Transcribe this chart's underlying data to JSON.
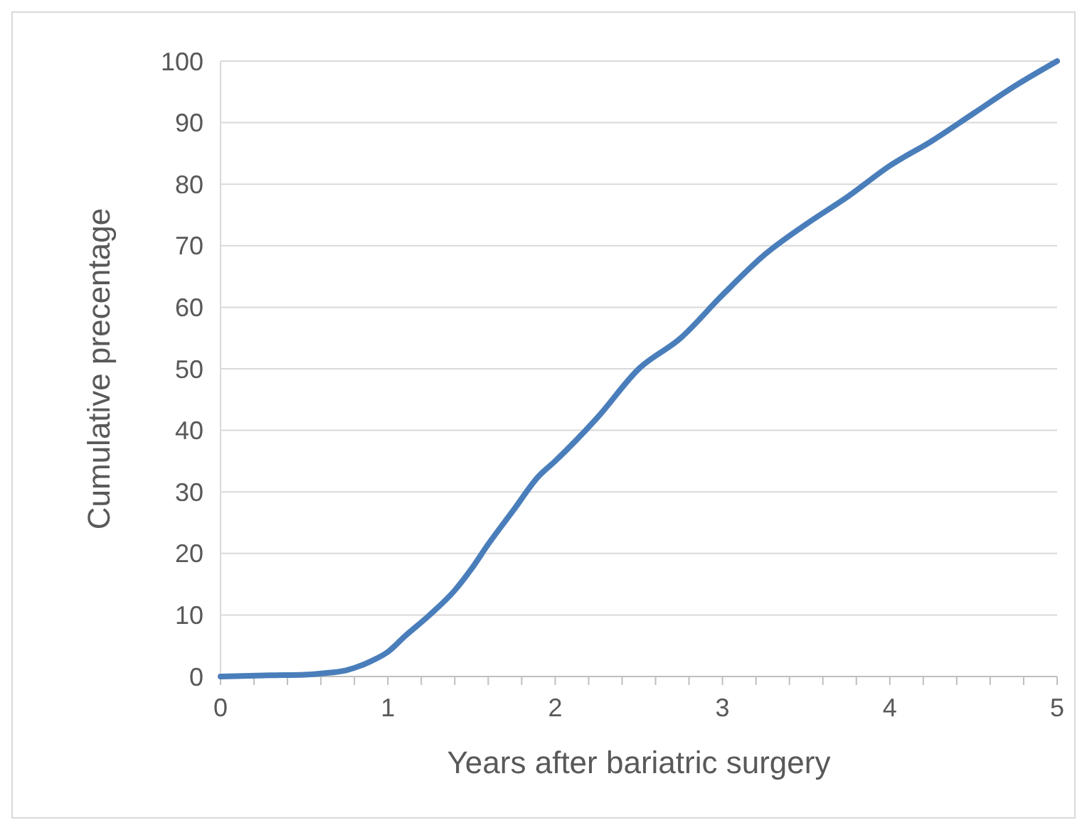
{
  "chart_data": {
    "type": "line",
    "xlabel": "Years after bariatric surgery",
    "ylabel": "Cumulative precentage",
    "x": [
      0,
      0.3,
      0.5,
      0.6,
      0.75,
      0.9,
      1.0,
      1.1,
      1.25,
      1.4,
      1.5,
      1.6,
      1.75,
      1.9,
      2.0,
      2.25,
      2.5,
      2.75,
      3.0,
      3.25,
      3.5,
      3.75,
      4.0,
      4.25,
      4.5,
      4.75,
      5.0
    ],
    "series": [
      {
        "color": "#4a7ebb",
        "values": [
          0,
          0.2,
          0.3,
          0.5,
          1,
          2.5,
          4,
          6.5,
          10,
          14,
          17.5,
          21.5,
          27,
          32.5,
          35,
          42,
          50,
          55,
          62,
          68.5,
          73.5,
          78,
          83,
          87,
          91.5,
          96,
          100
        ]
      }
    ],
    "xlim": [
      0,
      5
    ],
    "xticks": [
      0,
      {
        "value": 0.2,
        "label": null
      },
      {
        "value": 0.4,
        "label": null
      },
      {
        "value": 0.6,
        "label": null
      },
      {
        "value": 0.8,
        "label": null
      },
      1,
      {
        "value": 1.2,
        "label": null
      },
      {
        "value": 1.4,
        "label": null
      },
      {
        "value": 1.6,
        "label": null
      },
      {
        "value": 1.8,
        "label": null
      },
      2,
      {
        "value": 2.2,
        "label": null
      },
      {
        "value": 2.4,
        "label": null
      },
      {
        "value": 2.6,
        "label": null
      },
      {
        "value": 2.8,
        "label": null
      },
      3,
      {
        "value": 3.2,
        "label": null
      },
      {
        "value": 3.4,
        "label": null
      },
      {
        "value": 3.6,
        "label": null
      },
      {
        "value": 3.8,
        "label": null
      },
      4,
      {
        "value": 4.2,
        "label": null
      },
      {
        "value": 4.4,
        "label": null
      },
      {
        "value": 4.6,
        "label": null
      },
      {
        "value": 4.8,
        "label": null
      },
      5
    ],
    "ylim": [
      0,
      100
    ],
    "yticks": [
      0,
      10,
      20,
      30,
      40,
      50,
      60,
      70,
      80,
      90,
      100
    ],
    "grid": "y",
    "marker": "none",
    "line_style": "solid"
  }
}
